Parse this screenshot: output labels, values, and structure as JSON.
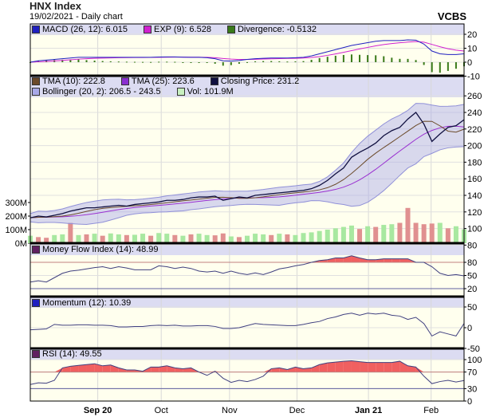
{
  "header": {
    "title": "HNX Index",
    "subtitle": "19/02/2021 - Daily chart",
    "brand": "VCBS"
  },
  "colors": {
    "plot_bg": "#ffffee",
    "header_bg": "#dcdcf2",
    "close": "#101040",
    "tma10": "#6b4a2a",
    "tma25": "#9a30d0",
    "boll": "#a8a8e8",
    "vol_up": "#a8e8a0",
    "vol_down": "#e09090",
    "macd": "#2020c0",
    "exp": "#d020d0",
    "div": "#3a7a1a",
    "ind": "#404080",
    "fill": "#f06060"
  },
  "legends": {
    "macd": [
      {
        "label": "MACD (26, 12): 6.015",
        "color": "#2020c0"
      },
      {
        "label": "EXP (9): 6.528",
        "color": "#d020d0"
      },
      {
        "label": "Divergence: -0.5132",
        "color": "#3a7a1a"
      }
    ],
    "price_row1": [
      {
        "label": "TMA (10): 222.8",
        "color": "#6b4a2a"
      },
      {
        "label": "TMA (25): 223.6",
        "color": "#8a30d0"
      },
      {
        "label": "Closing Price: 231.2",
        "color": "#101040"
      }
    ],
    "price_row2": [
      {
        "label": "Bollinger (20, 2): 206.5 - 243.5",
        "color": "#a8a8e8"
      },
      {
        "label": "Vol: 101.9M",
        "color": "#c8f0c0"
      }
    ],
    "mfi": [
      {
        "label": "Money Flow Index (14): 48.99",
        "color": "#602060"
      }
    ],
    "mom": [
      {
        "label": "Momentum (12): 10.39",
        "color": "#2020c0"
      }
    ],
    "rsi": [
      {
        "label": "RSI (14): 49.55",
        "color": "#602060"
      }
    ]
  },
  "chart_data": {
    "type": "line",
    "x_labels": [
      {
        "label": "Sep 20",
        "index": 8.4,
        "bold": true
      },
      {
        "label": "Oct",
        "index": 16.3,
        "bold": false
      },
      {
        "label": "Nov",
        "index": 24.8,
        "bold": false
      },
      {
        "label": "Dec",
        "index": 33.2,
        "bold": false
      },
      {
        "label": "Jan 21",
        "index": 42.1,
        "bold": true
      },
      {
        "label": "Feb",
        "index": 49.9,
        "bold": false
      }
    ],
    "panels": {
      "macd": {
        "ticks": [
          "20",
          "10",
          "0",
          "-10"
        ],
        "ylim": [
          -10,
          20
        ]
      },
      "price": {
        "ticks": [
          "260",
          "240",
          "220",
          "200",
          "180",
          "160",
          "140",
          "120",
          "100",
          "80"
        ],
        "ylim": [
          80,
          260
        ],
        "vol_ticks": [
          "300M",
          "200M",
          "100M",
          "0M"
        ]
      },
      "mfi": {
        "ticks": [
          "80",
          "50",
          "20"
        ],
        "levels": [
          80,
          20
        ]
      },
      "mom": {
        "ticks": [
          "50",
          "0",
          "-50"
        ],
        "ylim": [
          -50,
          50
        ]
      },
      "rsi": {
        "ticks": [
          "100",
          "70",
          "30",
          "0"
        ],
        "levels": [
          70,
          30
        ]
      }
    },
    "close": [
      113,
      115,
      114,
      116,
      118,
      121,
      123,
      125,
      125,
      126,
      127,
      128,
      127,
      129,
      130,
      131,
      132,
      134,
      134,
      135,
      137,
      138,
      138,
      139,
      134,
      136,
      138,
      137,
      140,
      141,
      142,
      143,
      144,
      145,
      146,
      148,
      152,
      158,
      166,
      173,
      186,
      192,
      197,
      203,
      212,
      218,
      222,
      232,
      240,
      226,
      205,
      214,
      222,
      224,
      231.2
    ],
    "volume_m": [
      55,
      45,
      40,
      60,
      65,
      150,
      60,
      65,
      70,
      55,
      72,
      65,
      60,
      62,
      70,
      55,
      75,
      70,
      60,
      55,
      65,
      70,
      60,
      58,
      72,
      50,
      45,
      55,
      70,
      65,
      60,
      70,
      65,
      60,
      75,
      80,
      90,
      100,
      110,
      120,
      130,
      105,
      125,
      120,
      135,
      140,
      150,
      260,
      150,
      140,
      145,
      150,
      110,
      125,
      101.9
    ],
    "volume_down": [
      false,
      true,
      true,
      false,
      false,
      true,
      false,
      true,
      false,
      true,
      false,
      false,
      true,
      false,
      false,
      true,
      false,
      false,
      true,
      false,
      true,
      false,
      false,
      true,
      true,
      false,
      true,
      false,
      false,
      false,
      true,
      false,
      true,
      false,
      false,
      false,
      false,
      false,
      false,
      false,
      false,
      true,
      false,
      true,
      false,
      false,
      true,
      true,
      true,
      true,
      true,
      false,
      true,
      false,
      false
    ],
    "macd": [
      0,
      1,
      1.5,
      2,
      2.5,
      3,
      3.5,
      3.5,
      3.5,
      3.5,
      3.5,
      3.5,
      3.5,
      3.5,
      3.5,
      3.5,
      3.7,
      3.8,
      3.8,
      3.6,
      3.5,
      3.5,
      3.2,
      2.5,
      1,
      0.8,
      1.2,
      2,
      2.5,
      2.8,
      3,
      3,
      3,
      3.2,
      3.5,
      4.5,
      6,
      7.5,
      9,
      10.5,
      12,
      13,
      14,
      15,
      15.5,
      15.5,
      15.5,
      16,
      15.8,
      13,
      8,
      6,
      5.5,
      5.5,
      6.015
    ],
    "mfi": [
      35,
      38,
      35,
      45,
      55,
      60,
      62,
      65,
      68,
      70,
      66,
      70,
      67,
      63,
      63,
      63,
      72,
      70,
      66,
      69,
      66,
      60,
      58,
      60,
      55,
      60,
      55,
      52,
      56,
      52,
      58,
      65,
      68,
      72,
      75,
      80,
      84,
      86,
      90,
      90,
      95,
      90,
      86,
      86,
      88,
      88,
      88,
      88,
      80,
      80,
      70,
      55,
      50,
      52,
      48.99
    ],
    "momentum": [
      -5,
      -4,
      -3,
      8,
      6,
      6,
      7,
      7,
      6,
      6,
      5,
      2,
      2,
      3,
      3,
      5,
      6,
      5,
      6,
      4,
      4,
      5,
      5,
      3,
      -2,
      -2,
      0,
      5,
      10,
      8,
      7,
      6,
      5,
      5,
      8,
      12,
      15,
      22,
      26,
      32,
      35,
      30,
      35,
      33,
      35,
      30,
      28,
      20,
      25,
      10,
      -20,
      -10,
      -15,
      -20,
      10.39
    ],
    "rsi": [
      40,
      44,
      43,
      50,
      80,
      84,
      86,
      88,
      90,
      85,
      87,
      80,
      75,
      75,
      72,
      82,
      82,
      85,
      80,
      78,
      80,
      70,
      62,
      72,
      55,
      45,
      50,
      47,
      52,
      60,
      78,
      80,
      76,
      82,
      78,
      80,
      88,
      92,
      94,
      96,
      97,
      95,
      93,
      93,
      93,
      93,
      96,
      85,
      82,
      60,
      42,
      47,
      50,
      46,
      49.55
    ]
  }
}
